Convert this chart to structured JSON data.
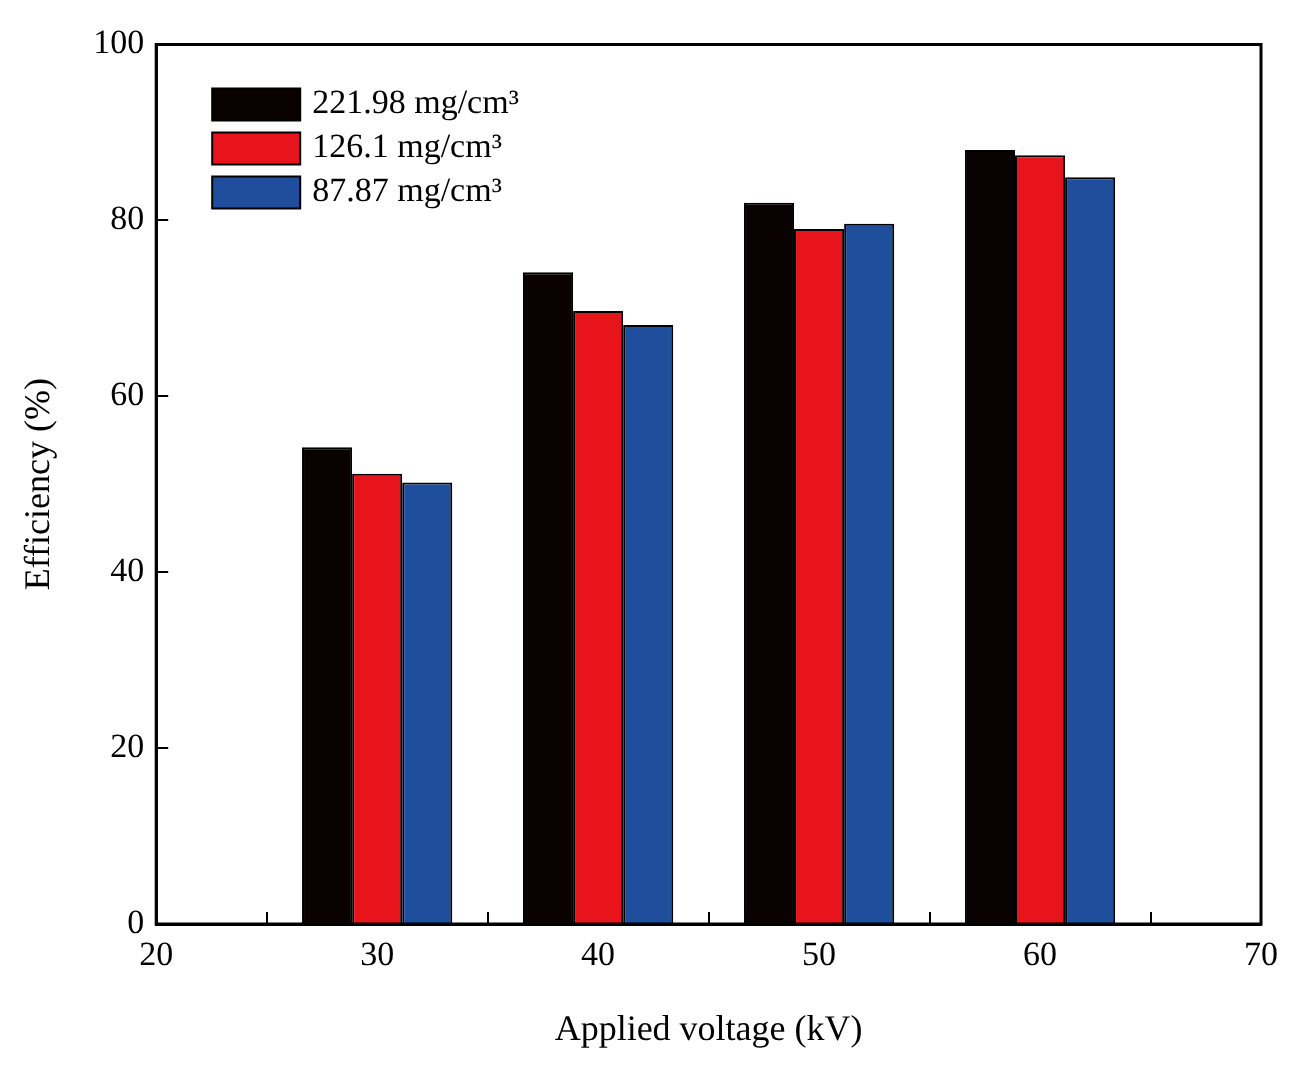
{
  "chart_data": {
    "type": "bar",
    "xlabel": "Applied voltage (kV)",
    "ylabel": "Efficiency (%)",
    "x": [
      30,
      40,
      50,
      60
    ],
    "series": [
      {
        "name": "221.98 mg/cm³",
        "color": "#0a0202",
        "values": [
          54.2,
          74.1,
          82,
          88
        ]
      },
      {
        "name": "126.1 mg/cm³",
        "color": "#e8141c",
        "values": [
          51.2,
          69.7,
          79,
          87.4
        ]
      },
      {
        "name": "87.87 mg/cm³",
        "color": "#1f4e9c",
        "values": [
          50.2,
          68.1,
          79.6,
          84.9
        ]
      }
    ],
    "xlim": [
      20,
      70
    ],
    "xticks": [
      20,
      30,
      40,
      50,
      60,
      70
    ],
    "ylim": [
      0,
      100
    ],
    "yticks": [
      0,
      20,
      40,
      60,
      80,
      100
    ],
    "grid": false,
    "legend": "top left"
  }
}
